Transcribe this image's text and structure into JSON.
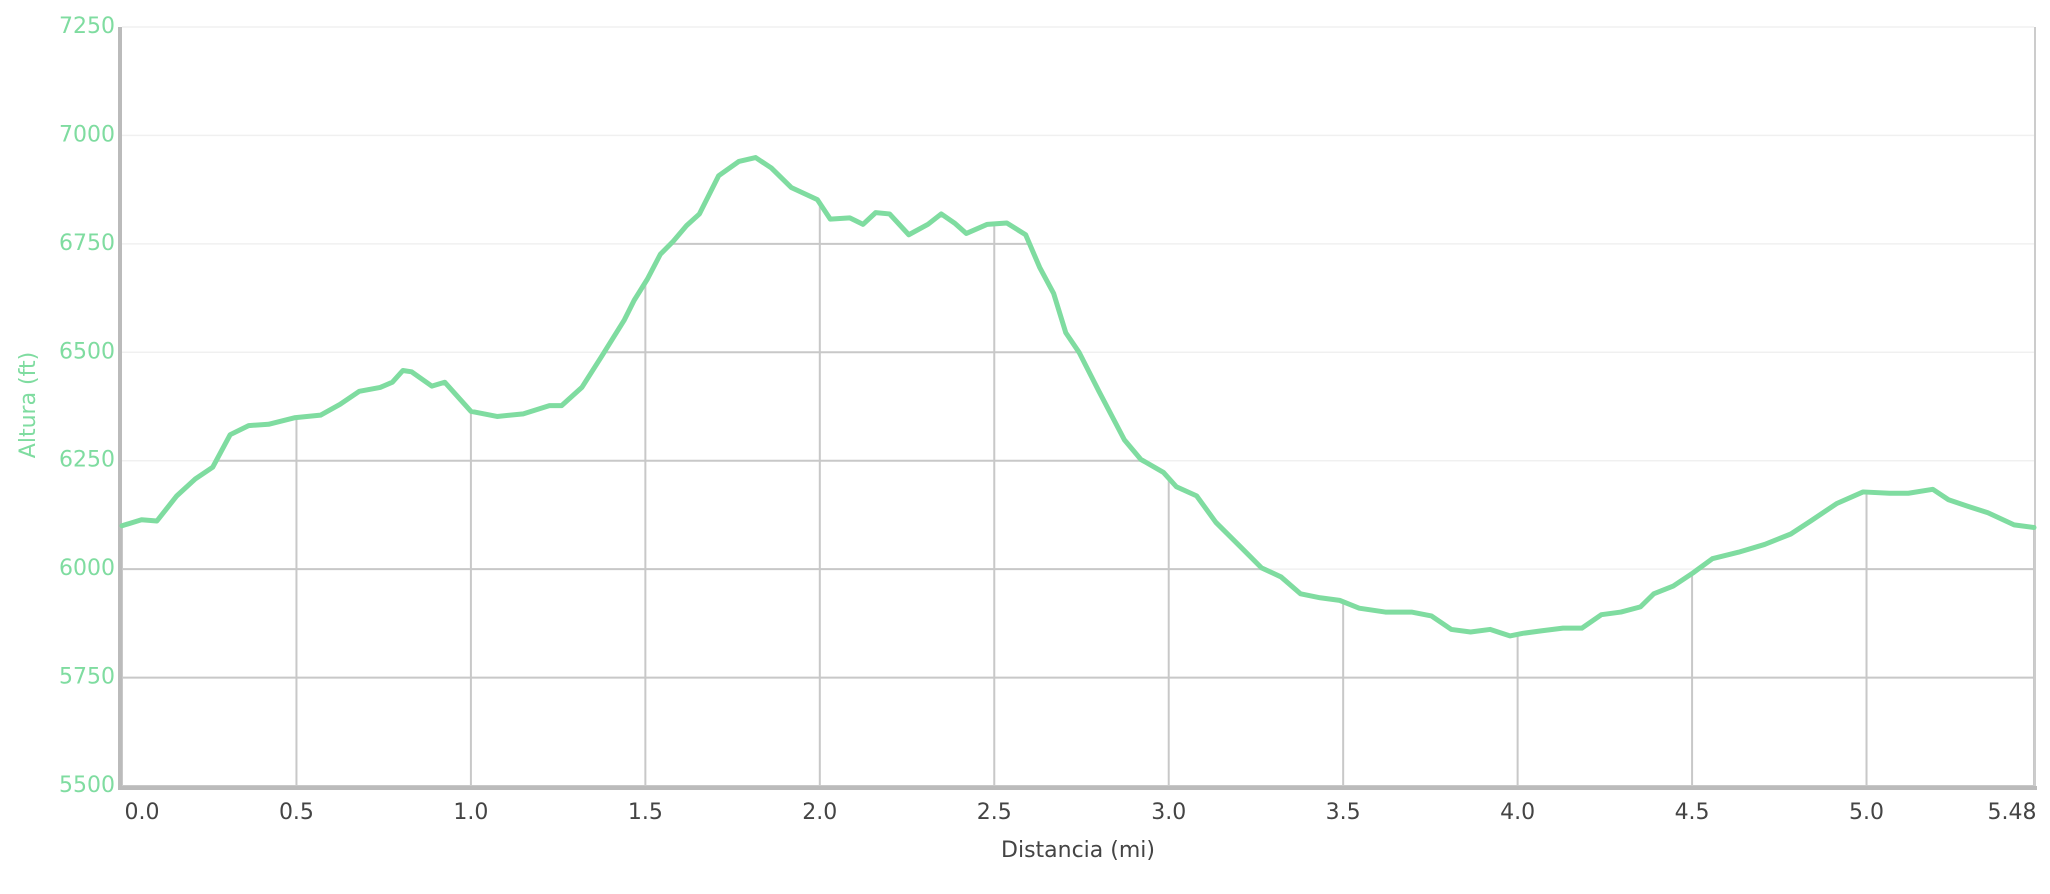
{
  "chart_data": {
    "type": "line",
    "xlabel": "Distancia (mi)",
    "ylabel": "Altura (ft)",
    "x": [
      0,
      0.056,
      0.1,
      0.157,
      0.21,
      0.26,
      0.31,
      0.363,
      0.42,
      0.494,
      0.569,
      0.625,
      0.68,
      0.74,
      0.775,
      0.805,
      0.83,
      0.888,
      0.925,
      1.0,
      1.075,
      1.15,
      1.225,
      1.26,
      1.318,
      1.375,
      1.44,
      1.468,
      1.506,
      1.543,
      1.58,
      1.618,
      1.655,
      1.71,
      1.768,
      1.816,
      1.861,
      1.918,
      1.993,
      2.03,
      2.086,
      2.124,
      2.16,
      2.2,
      2.255,
      2.31,
      2.348,
      2.386,
      2.42,
      2.48,
      2.536,
      2.59,
      2.63,
      2.67,
      2.705,
      2.743,
      2.8,
      2.873,
      2.92,
      2.985,
      3.022,
      3.08,
      3.135,
      3.21,
      3.266,
      3.322,
      3.378,
      3.434,
      3.49,
      3.546,
      3.621,
      3.696,
      3.753,
      3.81,
      3.865,
      3.921,
      3.978,
      4.015,
      4.07,
      4.13,
      4.184,
      4.24,
      4.296,
      4.352,
      4.39,
      4.446,
      4.502,
      4.558,
      4.633,
      4.708,
      4.783,
      4.84,
      4.914,
      4.99,
      5.066,
      5.12,
      5.19,
      5.235,
      5.29,
      5.348,
      5.423,
      5.48
    ],
    "series": [
      {
        "name": "Altura",
        "color": "#7fdca0",
        "values": [
          6100,
          6114,
          6111,
          6169,
          6208,
          6235,
          6310,
          6331,
          6334,
          6349,
          6355,
          6380,
          6410,
          6419,
          6431,
          6458,
          6455,
          6422,
          6431,
          6364,
          6352,
          6358,
          6377,
          6377,
          6419,
          6491,
          6575,
          6620,
          6669,
          6726,
          6756,
          6792,
          6819,
          6907,
          6940,
          6949,
          6925,
          6880,
          6852,
          6807,
          6810,
          6795,
          6822,
          6819,
          6771,
          6795,
          6819,
          6798,
          6774,
          6795,
          6798,
          6771,
          6696,
          6636,
          6545,
          6500,
          6410,
          6298,
          6253,
          6223,
          6190,
          6169,
          6108,
          6048,
          6003,
          5982,
          5943,
          5934,
          5928,
          5910,
          5901,
          5901,
          5892,
          5861,
          5855,
          5861,
          5846,
          5852,
          5858,
          5864,
          5864,
          5895,
          5901,
          5913,
          5943,
          5961,
          5991,
          6024,
          6039,
          6057,
          6081,
          6111,
          6151,
          6178,
          6175,
          6175,
          6184,
          6160,
          6145,
          6130,
          6102,
          6096
        ]
      }
    ],
    "xlim": [
      0,
      5.48
    ],
    "xticks": [
      {
        "value": 0,
        "label": "0.0"
      },
      0.5,
      {
        "value": 1,
        "label": "1.0"
      },
      1.5,
      {
        "value": 2,
        "label": "2.0"
      },
      2.5,
      {
        "value": 3,
        "label": "3.0"
      },
      3.5,
      {
        "value": 4,
        "label": "4.0"
      },
      4.5,
      {
        "value": 5,
        "label": "5.0"
      },
      5.48
    ],
    "ylim": [
      5500,
      7250
    ],
    "yticks": [
      5500,
      5750,
      6000,
      6250,
      6500,
      6750,
      7000,
      7250
    ],
    "grid": true
  }
}
